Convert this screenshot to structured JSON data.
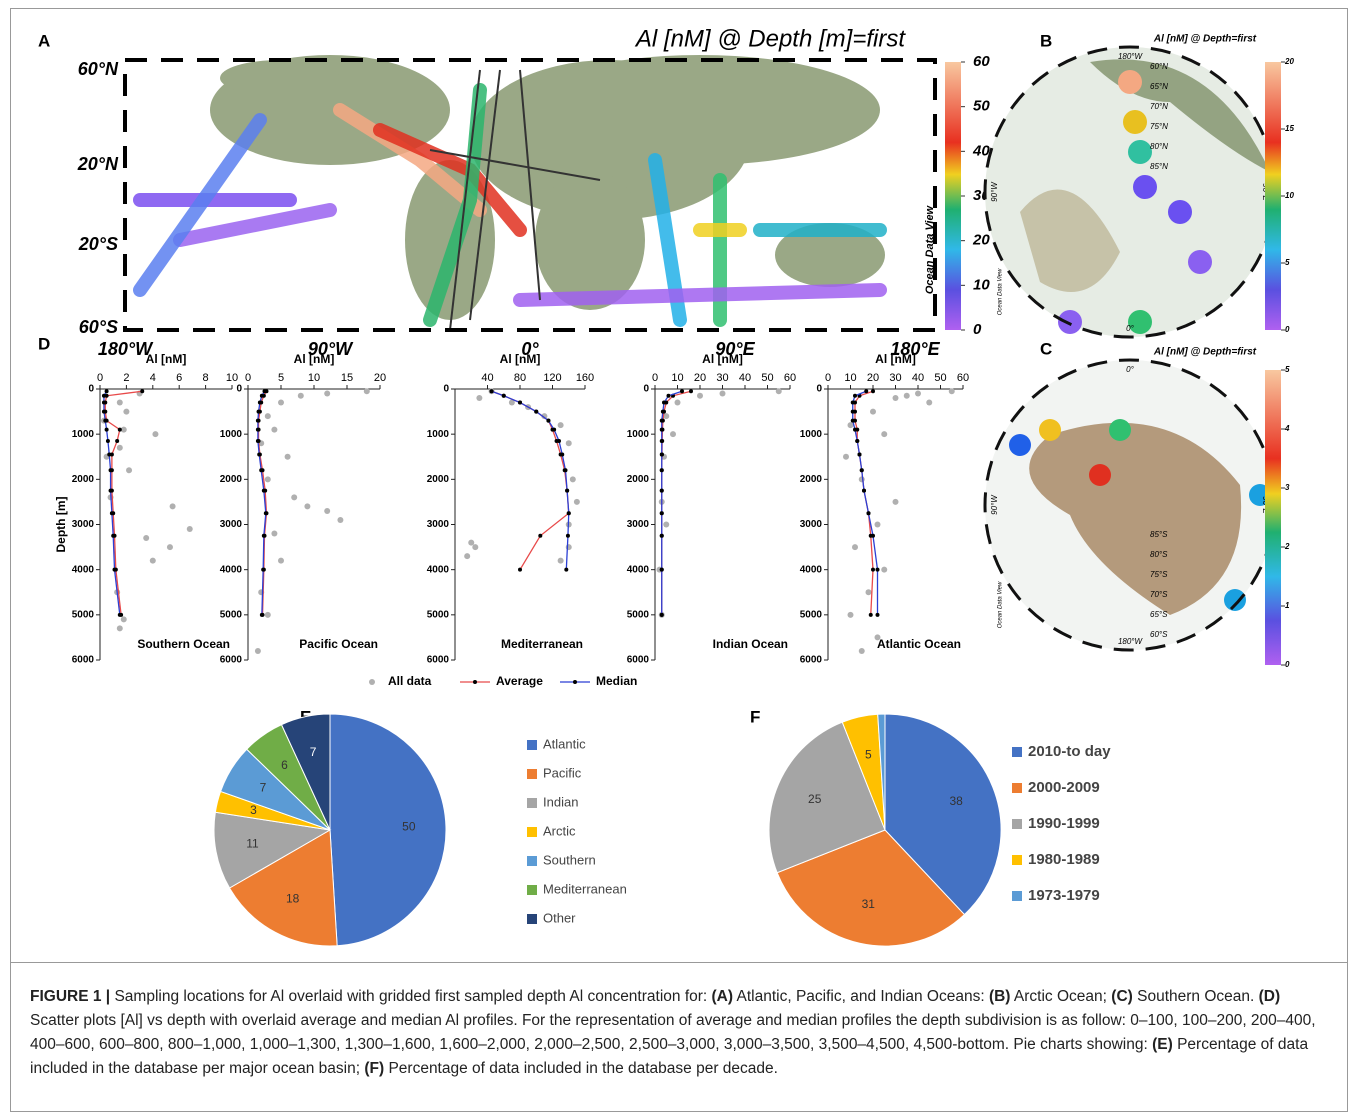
{
  "figure": {
    "panel_labels": [
      "A",
      "B",
      "C",
      "D",
      "E",
      "F"
    ]
  },
  "maps": [
    {
      "title": "Al [nM] @ Depth [m]=first",
      "lat_labels": [
        "60°N",
        "20°N",
        "20°S",
        "60°S"
      ],
      "lon_labels": [
        "180°W",
        "90°W",
        "0°",
        "90°E",
        "180°E"
      ],
      "colorbar_label": "Ocean Data View",
      "colorbar_lim": [
        0,
        60
      ],
      "colorbar_ticks": [
        0,
        10,
        20,
        30,
        40,
        50,
        60
      ]
    },
    {
      "title": "Al [nM] @ Depth=first",
      "top_label": "180°W",
      "left_label": "90°W",
      "right_label": "90°E",
      "bottom_label": "0°",
      "lat_labels": [
        "60°N",
        "65°N",
        "70°N",
        "75°N",
        "80°N",
        "85°N"
      ],
      "colorbar_label": "Ocean Data View",
      "colorbar_lim": [
        0,
        20
      ],
      "colorbar_ticks": [
        0,
        5,
        10,
        15,
        20
      ]
    },
    {
      "title": "Al [nM] @ Depth=first",
      "top_label": "0°",
      "left_label": "90°W",
      "right_label": "90°E",
      "bottom_label": "180°W",
      "lat_labels": [
        "85°S",
        "80°S",
        "75°S",
        "70°S",
        "65°S",
        "60°S"
      ],
      "colorbar_label": "Ocean Data View",
      "colorbar_lim": [
        0,
        5
      ],
      "colorbar_ticks": [
        0,
        1,
        2,
        3,
        4,
        5
      ]
    }
  ],
  "profile_legend": {
    "points": {
      "name": "All data",
      "color": "#b0b0b0"
    },
    "series": [
      {
        "name": "Average",
        "color": "#e84a4a"
      },
      {
        "name": "Median",
        "color": "#2b3fd4"
      }
    ]
  },
  "chart_data": [
    {
      "type": "scatter",
      "title": "Southern Ocean",
      "xlabel": "Al [nM]",
      "ylabel": "Depth [m]",
      "xlim": [
        0,
        10
      ],
      "xticks": [
        0,
        2,
        4,
        6,
        8,
        10
      ],
      "ylim": [
        0,
        6000
      ],
      "yticks": [
        0,
        1000,
        2000,
        3000,
        4000,
        5000,
        6000
      ],
      "y_inverted": true,
      "points": {
        "values": [
          3,
          1.5,
          2,
          0.3,
          1.8,
          4.2,
          1.5,
          2.2,
          5.5,
          6.8,
          3.5,
          5.3,
          4,
          1.3,
          1.8,
          1.5,
          0.8,
          0.5
        ],
        "depths": [
          100,
          300,
          500,
          700,
          900,
          1000,
          1300,
          1800,
          2600,
          3100,
          3300,
          3500,
          3800,
          4500,
          5100,
          5300,
          2400,
          1500
        ]
      },
      "depths": [
        50,
        150,
        300,
        500,
        700,
        900,
        1150,
        1450,
        1800,
        2250,
        2750,
        3250,
        4000,
        5000
      ],
      "series": [
        {
          "values": [
            3.2,
            0.5,
            0.4,
            0.4,
            0.5,
            1.5,
            1.3,
            0.9,
            0.9,
            0.9,
            1.0,
            1.1,
            1.2,
            1.6
          ]
        },
        {
          "values": [
            0.5,
            0.3,
            0.3,
            0.3,
            0.4,
            0.5,
            0.6,
            0.7,
            0.8,
            0.8,
            0.9,
            1.0,
            1.1,
            1.5
          ]
        }
      ]
    },
    {
      "type": "scatter",
      "title": "Pacific Ocean",
      "xlabel": "Al [nM]",
      "xlim": [
        0,
        20
      ],
      "xticks": [
        0,
        5,
        10,
        15,
        20
      ],
      "ylim": [
        0,
        6000
      ],
      "yticks": [
        0,
        1000,
        2000,
        3000,
        4000,
        5000,
        6000
      ],
      "y_inverted": true,
      "points": {
        "values": [
          18,
          12,
          8,
          5,
          3,
          4,
          2,
          6,
          3,
          7,
          9,
          12,
          14,
          4,
          5,
          2,
          3,
          1.5
        ],
        "depths": [
          50,
          100,
          150,
          300,
          600,
          900,
          1200,
          1500,
          2000,
          2400,
          2600,
          2700,
          2900,
          3200,
          3800,
          4500,
          5000,
          5800
        ]
      },
      "depths": [
        50,
        150,
        300,
        500,
        700,
        900,
        1150,
        1450,
        1800,
        2250,
        2750,
        3250,
        4000,
        5000
      ],
      "series": [
        {
          "values": [
            2.8,
            2.4,
            2.0,
            1.8,
            1.6,
            1.6,
            1.6,
            1.8,
            2.2,
            2.6,
            2.8,
            2.5,
            2.4,
            2.2
          ]
        },
        {
          "values": [
            2.5,
            2.1,
            1.8,
            1.6,
            1.5,
            1.5,
            1.5,
            1.7,
            2.0,
            2.4,
            2.7,
            2.4,
            2.3,
            2.1
          ]
        }
      ]
    },
    {
      "type": "scatter",
      "title": "Mediterranean",
      "xlabel": "Al [nM]",
      "xlim": [
        0,
        160
      ],
      "xticks": [
        40,
        80,
        120,
        160
      ],
      "ylim": [
        0,
        6000
      ],
      "yticks": [
        0,
        1000,
        2000,
        3000,
        4000,
        5000,
        6000
      ],
      "y_inverted": true,
      "points": {
        "values": [
          45,
          30,
          70,
          90,
          110,
          130,
          140,
          145,
          150,
          140,
          20,
          15,
          25,
          140,
          130
        ],
        "depths": [
          50,
          200,
          300,
          400,
          600,
          800,
          1200,
          2000,
          2500,
          3000,
          3400,
          3700,
          3500,
          3500,
          3800
        ]
      },
      "depths": [
        50,
        150,
        300,
        500,
        700,
        900,
        1150,
        1450,
        1800,
        2250,
        2750,
        3250,
        4000,
        5000
      ],
      "series": [
        {
          "values": [
            45,
            60,
            80,
            100,
            115,
            120,
            125,
            130,
            135,
            138,
            140,
            105,
            80,
            null
          ]
        },
        {
          "values": [
            45,
            60,
            80,
            100,
            115,
            122,
            128,
            132,
            136,
            138,
            140,
            139,
            137,
            null
          ]
        }
      ]
    },
    {
      "type": "scatter",
      "title": "Indian Ocean",
      "xlabel": "Al [nM]",
      "xlim": [
        0,
        60
      ],
      "xticks": [
        0,
        10,
        20,
        30,
        40,
        50,
        60
      ],
      "ylim": [
        0,
        6000
      ],
      "yticks": [
        0,
        1000,
        2000,
        3000,
        4000,
        5000,
        6000
      ],
      "y_inverted": true,
      "points": {
        "values": [
          55,
          30,
          20,
          10,
          5,
          8,
          4,
          3,
          5,
          2,
          3
        ],
        "depths": [
          50,
          100,
          150,
          300,
          600,
          1000,
          1500,
          2500,
          3000,
          4000,
          5000
        ]
      },
      "depths": [
        50,
        150,
        300,
        500,
        700,
        900,
        1150,
        1450,
        1800,
        2250,
        2750,
        3250,
        4000,
        5000
      ],
      "series": [
        {
          "values": [
            16,
            8,
            5,
            4,
            3.5,
            3.3,
            3.2,
            3.1,
            3.0,
            3.0,
            3.0,
            3.0,
            3.0,
            3.0
          ]
        },
        {
          "values": [
            12,
            6,
            4,
            3.5,
            3,
            3,
            3,
            3,
            3,
            3,
            3,
            3,
            3,
            3
          ]
        }
      ]
    },
    {
      "type": "scatter",
      "title": "Atlantic Ocean",
      "xlabel": "Al [nM]",
      "xlim": [
        0,
        60
      ],
      "xticks": [
        0,
        10,
        20,
        30,
        40,
        50,
        60
      ],
      "ylim": [
        0,
        6000
      ],
      "yticks": [
        0,
        1000,
        2000,
        3000,
        4000,
        5000,
        6000
      ],
      "y_inverted": true,
      "points": {
        "values": [
          55,
          40,
          30,
          20,
          10,
          25,
          8,
          15,
          30,
          22,
          12,
          25,
          18,
          10,
          22,
          15,
          45,
          35
        ],
        "depths": [
          50,
          100,
          200,
          500,
          800,
          1000,
          1500,
          2000,
          2500,
          3000,
          3500,
          4000,
          4500,
          5000,
          5500,
          5800,
          300,
          150
        ]
      },
      "depths": [
        50,
        150,
        300,
        500,
        700,
        900,
        1150,
        1450,
        1800,
        2250,
        2750,
        3250,
        4000,
        5000
      ],
      "series": [
        {
          "values": [
            20,
            14,
            12,
            12,
            12,
            13,
            13,
            14,
            15,
            16,
            18,
            19,
            20,
            19
          ]
        },
        {
          "values": [
            17,
            12,
            11,
            11,
            11,
            12,
            13,
            14,
            15,
            16,
            18,
            20,
            22,
            22
          ]
        }
      ]
    },
    {
      "type": "pie",
      "categories": [
        "Atlantic",
        "Pacific",
        "Indian",
        "Arctic",
        "Southern",
        "Mediterranean",
        "Other"
      ],
      "values": [
        50,
        18,
        11,
        3,
        7,
        6,
        7
      ],
      "colors": [
        "#4472c4",
        "#ed7d31",
        "#a5a5a5",
        "#ffc000",
        "#5b9bd5",
        "#70ad47",
        "#264478"
      ]
    },
    {
      "type": "pie",
      "categories": [
        "2010-to day",
        "2000-2009",
        "1990-1999",
        "1980-1989",
        "1973-1979"
      ],
      "values": [
        38,
        31,
        25,
        5,
        1
      ],
      "value_labels": [
        "38",
        "31",
        "25",
        "5",
        null
      ],
      "colors": [
        "#4472c4",
        "#ed7d31",
        "#a5a5a5",
        "#ffc000",
        "#5b9bd5"
      ]
    }
  ],
  "caption": {
    "parts": [
      {
        "text": "FIGURE 1 |",
        "bold": true
      },
      {
        "text": " Sampling locations for Al overlaid with gridded first sampled depth Al concentration for: ",
        "bold": false
      },
      {
        "text": "(A)",
        "bold": true
      },
      {
        "text": " Atlantic, Pacific, and Indian Oceans: ",
        "bold": false
      },
      {
        "text": "(B)",
        "bold": true
      },
      {
        "text": " Arctic Ocean; ",
        "bold": false
      },
      {
        "text": "(C)",
        "bold": true
      },
      {
        "text": " Southern Ocean. ",
        "bold": false
      },
      {
        "text": "(D)",
        "bold": true
      },
      {
        "text": " Scatter plots [Al] vs depth with overlaid average and median Al profiles. For the representation of average and median profiles the depth subdivision is as follow: 0–100, 100–200, 200–400, 400–600, 600–800, 800–1,000, 1,000–1,300, 1,300–1,600, 1,600–2,000, 2,000–2,500, 2,500–3,000, 3,000–3,500, 3,500–4,500, 4,500-bottom. Pie charts showing: ",
        "bold": false
      },
      {
        "text": "(E)",
        "bold": true
      },
      {
        "text": " Percentage of data included in the database per major ocean basin; ",
        "bold": false
      },
      {
        "text": "(F)",
        "bold": true
      },
      {
        "text": " Percentage of data included in the database per decade.",
        "bold": false
      }
    ]
  }
}
